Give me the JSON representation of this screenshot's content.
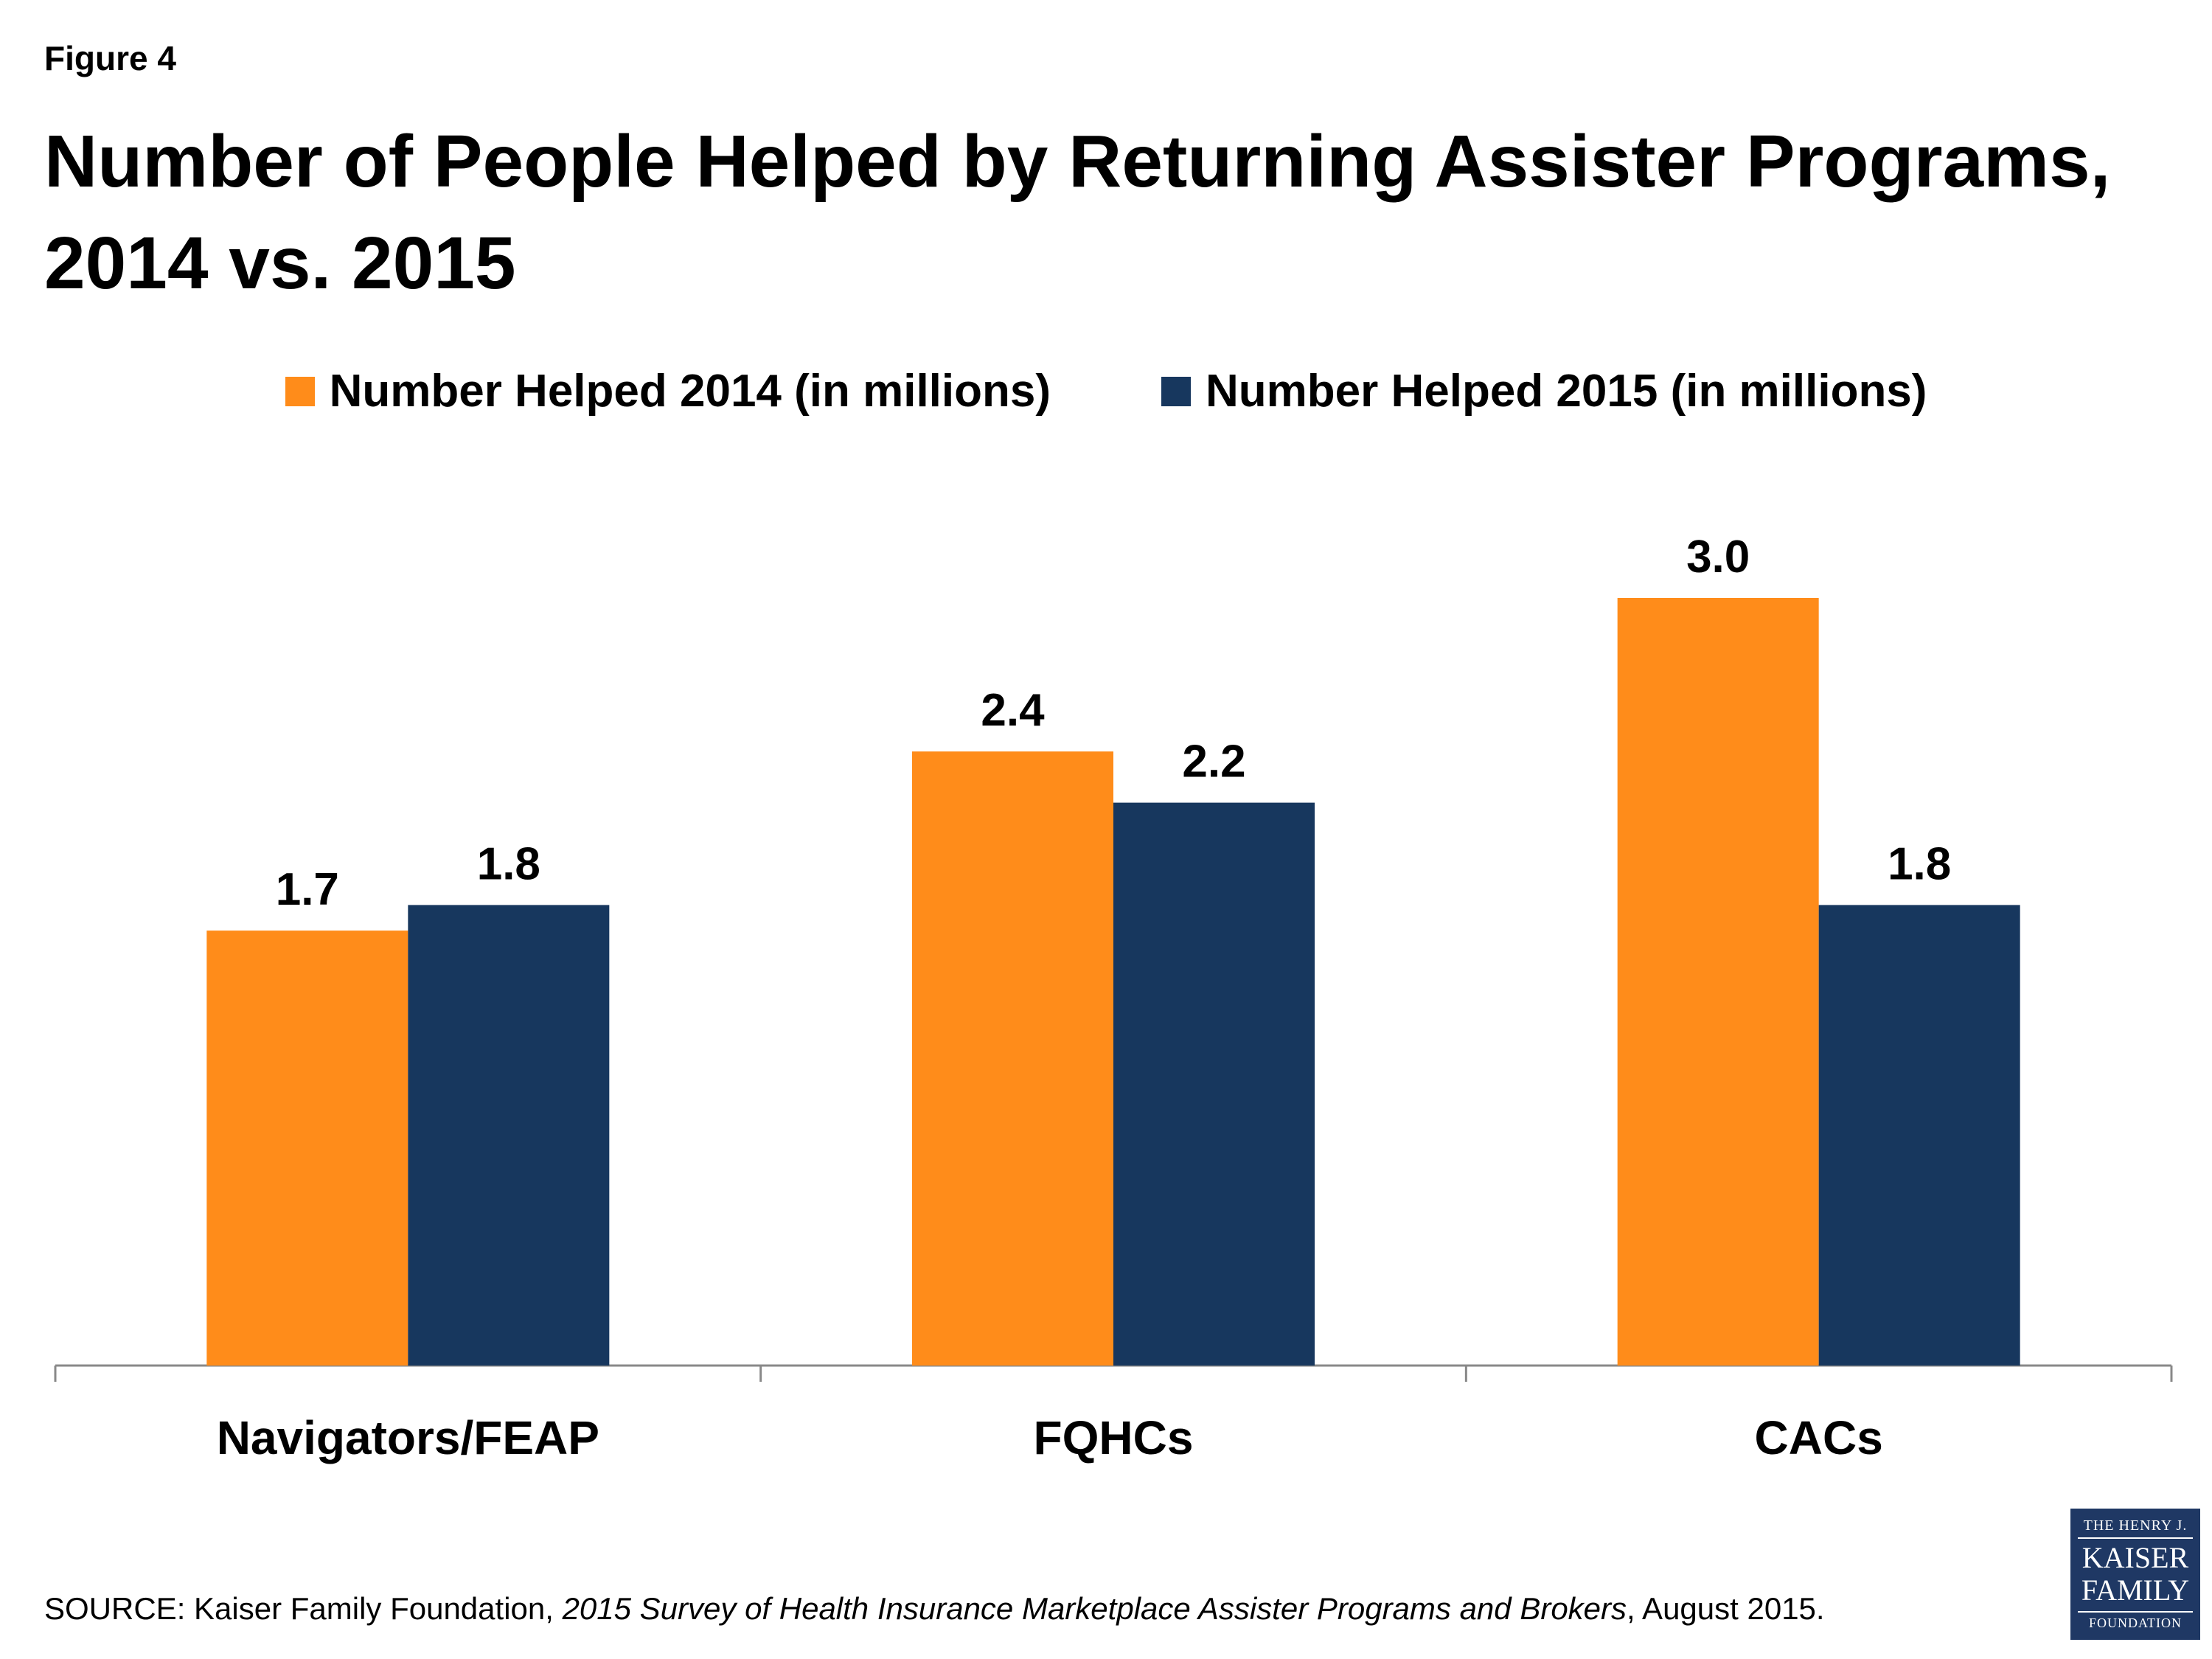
{
  "figure_label": "Figure 4",
  "colors": {
    "series_2014": "#FF8C1A",
    "series_2015": "#17375E",
    "axis": "#888888",
    "logo_bg": "#1F3864"
  },
  "chart_data": {
    "type": "bar",
    "title": "Number of People Helped by Returning Assister Programs, 2014 vs. 2015",
    "categories": [
      "Navigators/FEAP",
      "FQHCs",
      "CACs"
    ],
    "series": [
      {
        "name": "Number Helped 2014 (in millions)",
        "values": [
          1.7,
          2.4,
          3.0
        ],
        "labels": [
          "1.7",
          "2.4",
          "3.0"
        ]
      },
      {
        "name": "Number Helped 2015 (in millions)",
        "values": [
          1.8,
          2.2,
          1.8
        ],
        "labels": [
          "1.8",
          "2.2",
          "1.8"
        ]
      }
    ],
    "ylim": [
      0,
      3.5
    ],
    "grid": false,
    "legend_position": "top-center"
  },
  "source": {
    "prefix": "SOURCE: Kaiser Family Foundation, ",
    "italic": "2015 Survey of Health Insurance Marketplace Assister Programs and Brokers",
    "suffix": ", August 2015."
  },
  "logo": {
    "line1": "THE HENRY J.",
    "line2": "KAISER",
    "line3": "FAMILY",
    "line4": "FOUNDATION"
  }
}
